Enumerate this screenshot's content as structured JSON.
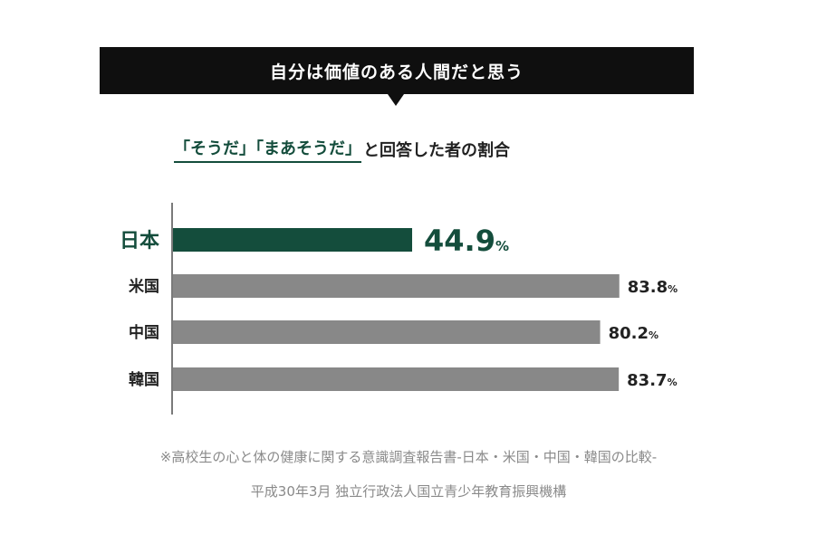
{
  "banner": {
    "title": "自分は価値のある人間だと思う"
  },
  "subtitle": {
    "highlight": "「そうだ」「まあそうだ」",
    "rest": "と回答した者の割合"
  },
  "chart_data": {
    "type": "bar",
    "orientation": "horizontal",
    "categories": [
      "日本",
      "米国",
      "中国",
      "韓国"
    ],
    "values": [
      44.9,
      83.8,
      80.2,
      83.7
    ],
    "unit": "%",
    "value_labels": [
      "44.9",
      "83.8",
      "80.2",
      "83.7"
    ],
    "xlim": [
      0,
      100
    ],
    "grid": false,
    "legend": "none",
    "colors": {
      "highlight": "#144d3c",
      "default": "#888888"
    }
  },
  "footnotes": [
    "※高校生の心と体の健康に関する意識調査報告書-日本・米国・中国・韓国の比較-",
    "平成30年3月 独立行政法人国立青少年教育振興機構"
  ]
}
